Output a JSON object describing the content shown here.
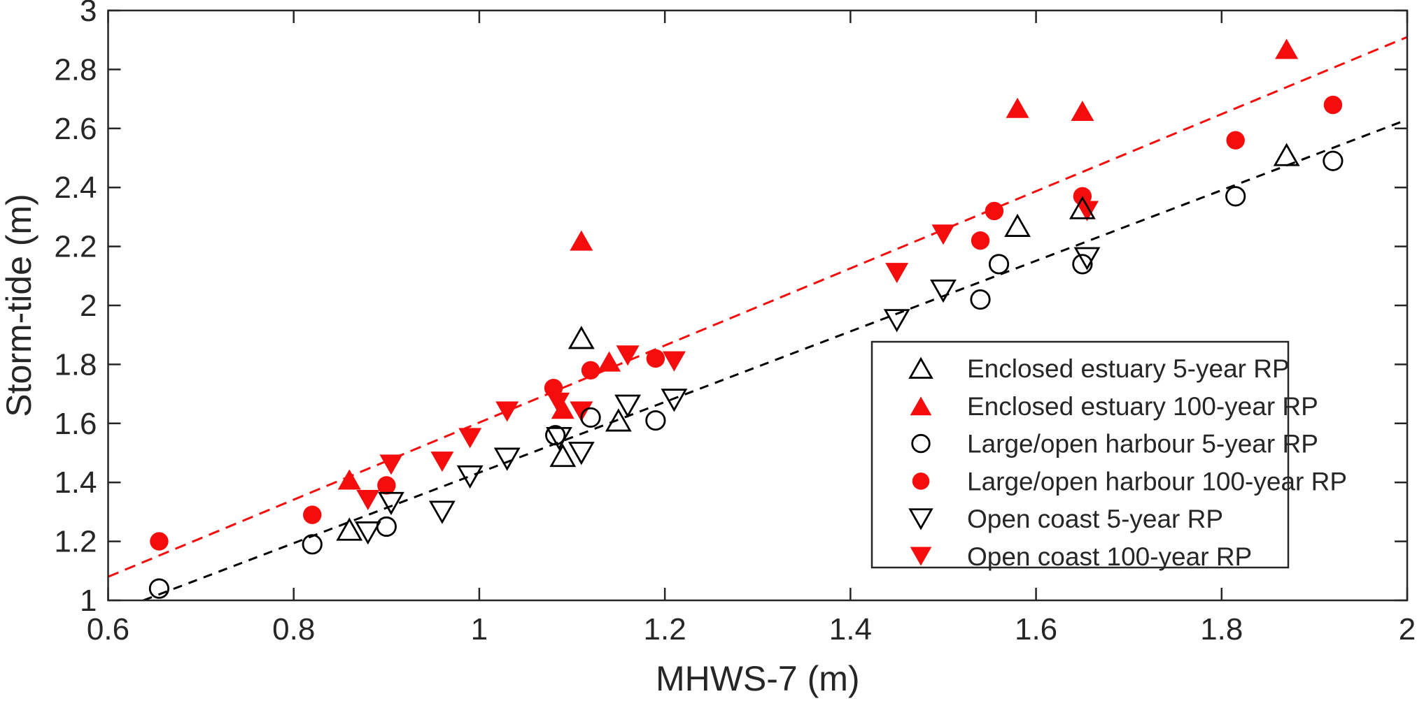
{
  "chart_data": {
    "type": "scatter",
    "title": "",
    "xlabel": "MHWS-7 (m)",
    "ylabel": "Storm-tide (m)",
    "xlim": [
      0.6,
      2.0
    ],
    "ylim": [
      1.0,
      3.0
    ],
    "x_ticks": [
      0.6,
      0.8,
      1.0,
      1.2,
      1.4,
      1.6,
      1.8,
      2.0
    ],
    "x_tick_labels": [
      "0.6",
      "0.8",
      "1",
      "1.2",
      "1.4",
      "1.6",
      "1.8",
      "2"
    ],
    "y_ticks": [
      1.0,
      1.2,
      1.4,
      1.6,
      1.8,
      2.0,
      2.2,
      2.4,
      2.6,
      2.8,
      3.0
    ],
    "y_tick_labels": [
      "1",
      "1.2",
      "1.4",
      "1.6",
      "1.8",
      "2",
      "2.2",
      "2.4",
      "2.6",
      "2.8",
      "3"
    ],
    "grid": false,
    "legend_position": "lower-right-inside",
    "colors": {
      "accent_red": "#f50d0d",
      "black": "#000000",
      "tick_text": "#262626"
    },
    "series": [
      {
        "name": "Enclosed estuary 5-year RP",
        "marker": "triangle-up",
        "fill": "none",
        "stroke": "#000000",
        "points": [
          [
            0.86,
            1.24
          ],
          [
            1.09,
            1.49
          ],
          [
            1.11,
            1.89
          ],
          [
            1.15,
            1.61
          ],
          [
            1.58,
            2.27
          ],
          [
            1.65,
            2.33
          ],
          [
            1.87,
            2.51
          ]
        ]
      },
      {
        "name": "Enclosed estuary 100-year RP",
        "marker": "triangle-up",
        "fill": "#f50d0d",
        "stroke": "none",
        "points": [
          [
            0.86,
            1.41
          ],
          [
            1.09,
            1.65
          ],
          [
            1.11,
            2.22
          ],
          [
            1.14,
            1.81
          ],
          [
            1.58,
            2.67
          ],
          [
            1.65,
            2.66
          ],
          [
            1.87,
            2.87
          ]
        ]
      },
      {
        "name": "Large/open harbour 5-year RP",
        "marker": "circle",
        "fill": "none",
        "stroke": "#000000",
        "points": [
          [
            0.655,
            1.04
          ],
          [
            0.82,
            1.19
          ],
          [
            0.9,
            1.25
          ],
          [
            1.082,
            1.56
          ],
          [
            1.12,
            1.62
          ],
          [
            1.19,
            1.61
          ],
          [
            1.54,
            2.02
          ],
          [
            1.56,
            2.14
          ],
          [
            1.65,
            2.14
          ],
          [
            1.815,
            2.37
          ],
          [
            1.92,
            2.49
          ]
        ]
      },
      {
        "name": "Large/open harbour 100-year RP",
        "marker": "circle",
        "fill": "#f50d0d",
        "stroke": "none",
        "points": [
          [
            0.655,
            1.2
          ],
          [
            0.82,
            1.29
          ],
          [
            0.9,
            1.39
          ],
          [
            1.08,
            1.72
          ],
          [
            1.12,
            1.78
          ],
          [
            1.19,
            1.82
          ],
          [
            1.54,
            2.22
          ],
          [
            1.555,
            2.32
          ],
          [
            1.65,
            2.37
          ],
          [
            1.815,
            2.56
          ],
          [
            1.92,
            2.68
          ]
        ]
      },
      {
        "name": "Open coast 5-year RP",
        "marker": "triangle-down",
        "fill": "none",
        "stroke": "#000000",
        "points": [
          [
            0.88,
            1.23
          ],
          [
            0.905,
            1.33
          ],
          [
            0.96,
            1.3
          ],
          [
            0.99,
            1.42
          ],
          [
            1.03,
            1.48
          ],
          [
            1.086,
            1.55
          ],
          [
            1.11,
            1.5
          ],
          [
            1.16,
            1.66
          ],
          [
            1.21,
            1.68
          ],
          [
            1.45,
            1.95
          ],
          [
            1.5,
            2.05
          ],
          [
            1.655,
            2.16
          ]
        ]
      },
      {
        "name": "Open coast 100-year RP",
        "marker": "triangle-down",
        "fill": "#f50d0d",
        "stroke": "none",
        "points": [
          [
            0.88,
            1.34
          ],
          [
            0.905,
            1.46
          ],
          [
            0.96,
            1.47
          ],
          [
            0.99,
            1.55
          ],
          [
            1.03,
            1.64
          ],
          [
            1.085,
            1.67
          ],
          [
            1.11,
            1.64
          ],
          [
            1.16,
            1.83
          ],
          [
            1.21,
            1.81
          ],
          [
            1.45,
            2.11
          ],
          [
            1.5,
            2.24
          ],
          [
            1.655,
            2.32
          ]
        ]
      }
    ],
    "draw_order": [
      5,
      1,
      3,
      0,
      4,
      2
    ],
    "trend_lines": [
      {
        "name": "fit-100-year",
        "color": "#f50d0d",
        "x1": 0.6,
        "y1": 1.08,
        "x2": 2.0,
        "y2": 2.91,
        "dash": "16 10"
      },
      {
        "name": "fit-5-year",
        "color": "#000000",
        "x1": 0.638,
        "y1": 1.0,
        "x2": 2.0,
        "y2": 2.63,
        "dash": "13 10"
      }
    ],
    "legend": {
      "entries": [
        {
          "label": "Enclosed estuary 5-year RP",
          "marker": "triangle-up",
          "fill": "none",
          "stroke": "#000000"
        },
        {
          "label": "Enclosed estuary 100-year RP",
          "marker": "triangle-up",
          "fill": "#f50d0d",
          "stroke": "none"
        },
        {
          "label": "Large/open harbour 5-year RP",
          "marker": "circle",
          "fill": "none",
          "stroke": "#000000"
        },
        {
          "label": "Large/open harbour 100-year RP",
          "marker": "circle",
          "fill": "#f50d0d",
          "stroke": "none"
        },
        {
          "label": "Open coast 5-year RP",
          "marker": "triangle-down",
          "fill": "none",
          "stroke": "#000000"
        },
        {
          "label": "Open coast 100-year RP",
          "marker": "triangle-down",
          "fill": "#f50d0d",
          "stroke": "none"
        }
      ]
    }
  }
}
